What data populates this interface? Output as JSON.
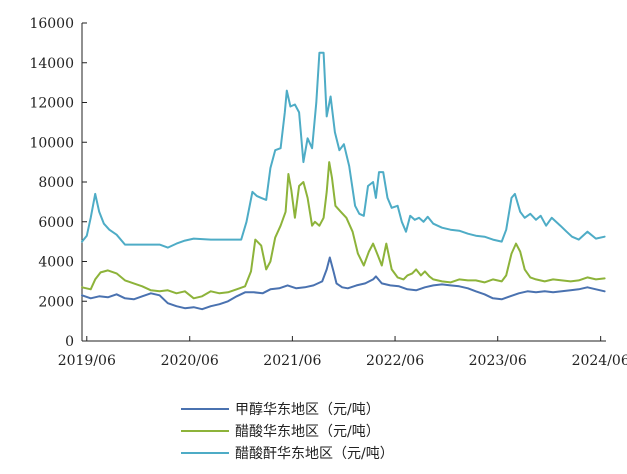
{
  "chart_data": {
    "type": "line",
    "title": "",
    "xlabel": "",
    "ylabel": "",
    "ylim": [
      0,
      16000
    ],
    "yticks": [
      0,
      2000,
      4000,
      6000,
      8000,
      10000,
      12000,
      14000,
      16000
    ],
    "xlim": [
      "2019-05-15",
      "2024-06-20"
    ],
    "xticks": [
      {
        "date": "2019-06-01",
        "label": "2019/06"
      },
      {
        "date": "2020-06-01",
        "label": "2020/06"
      },
      {
        "date": "2021-06-01",
        "label": "2021/06"
      },
      {
        "date": "2022-06-01",
        "label": "2022/06"
      },
      {
        "date": "2023-06-01",
        "label": "2023/06"
      },
      {
        "date": "2024-06-01",
        "label": "2024/06"
      }
    ],
    "grid": false,
    "legend_position": "bottom",
    "series": [
      {
        "name": "甲醇华东地区（元/吨）",
        "color": "#4a72b0",
        "points": [
          [
            "2019-05-15",
            2300
          ],
          [
            "2019-06-15",
            2150
          ],
          [
            "2019-07-15",
            2250
          ],
          [
            "2019-08-15",
            2200
          ],
          [
            "2019-09-15",
            2350
          ],
          [
            "2019-10-15",
            2150
          ],
          [
            "2019-11-15",
            2100
          ],
          [
            "2019-12-15",
            2250
          ],
          [
            "2020-01-15",
            2400
          ],
          [
            "2020-02-15",
            2300
          ],
          [
            "2020-03-15",
            1900
          ],
          [
            "2020-04-15",
            1750
          ],
          [
            "2020-05-15",
            1650
          ],
          [
            "2020-06-15",
            1700
          ],
          [
            "2020-07-15",
            1600
          ],
          [
            "2020-08-15",
            1750
          ],
          [
            "2020-09-15",
            1850
          ],
          [
            "2020-10-15",
            2000
          ],
          [
            "2020-11-15",
            2250
          ],
          [
            "2020-12-15",
            2450
          ],
          [
            "2021-01-15",
            2450
          ],
          [
            "2021-02-15",
            2400
          ],
          [
            "2021-03-15",
            2600
          ],
          [
            "2021-04-15",
            2650
          ],
          [
            "2021-05-15",
            2800
          ],
          [
            "2021-06-15",
            2650
          ],
          [
            "2021-07-15",
            2700
          ],
          [
            "2021-08-15",
            2800
          ],
          [
            "2021-09-15",
            3000
          ],
          [
            "2021-10-01",
            3600
          ],
          [
            "2021-10-12",
            4200
          ],
          [
            "2021-10-25",
            3500
          ],
          [
            "2021-11-05",
            2900
          ],
          [
            "2021-11-25",
            2700
          ],
          [
            "2021-12-15",
            2650
          ],
          [
            "2022-01-15",
            2800
          ],
          [
            "2022-02-15",
            2900
          ],
          [
            "2022-03-15",
            3100
          ],
          [
            "2022-03-25",
            3250
          ],
          [
            "2022-04-15",
            2900
          ],
          [
            "2022-05-15",
            2800
          ],
          [
            "2022-06-15",
            2750
          ],
          [
            "2022-07-15",
            2600
          ],
          [
            "2022-08-15",
            2550
          ],
          [
            "2022-09-15",
            2700
          ],
          [
            "2022-10-15",
            2800
          ],
          [
            "2022-11-15",
            2850
          ],
          [
            "2022-12-15",
            2800
          ],
          [
            "2023-01-15",
            2750
          ],
          [
            "2023-02-15",
            2650
          ],
          [
            "2023-03-15",
            2500
          ],
          [
            "2023-04-15",
            2350
          ],
          [
            "2023-05-15",
            2150
          ],
          [
            "2023-06-15",
            2100
          ],
          [
            "2023-07-15",
            2250
          ],
          [
            "2023-08-15",
            2400
          ],
          [
            "2023-09-15",
            2500
          ],
          [
            "2023-10-15",
            2450
          ],
          [
            "2023-11-15",
            2500
          ],
          [
            "2023-12-15",
            2450
          ],
          [
            "2024-01-15",
            2500
          ],
          [
            "2024-02-15",
            2550
          ],
          [
            "2024-03-15",
            2600
          ],
          [
            "2024-04-15",
            2700
          ],
          [
            "2024-05-15",
            2600
          ],
          [
            "2024-06-15",
            2500
          ]
        ]
      },
      {
        "name": "醋酸华东地区（元/吨）",
        "color": "#8db33a",
        "points": [
          [
            "2019-05-15",
            2700
          ],
          [
            "2019-06-15",
            2600
          ],
          [
            "2019-07-01",
            3100
          ],
          [
            "2019-07-20",
            3450
          ],
          [
            "2019-08-15",
            3550
          ],
          [
            "2019-09-15",
            3400
          ],
          [
            "2019-10-15",
            3050
          ],
          [
            "2019-11-15",
            2900
          ],
          [
            "2019-12-15",
            2750
          ],
          [
            "2020-01-15",
            2550
          ],
          [
            "2020-02-15",
            2500
          ],
          [
            "2020-03-15",
            2550
          ],
          [
            "2020-04-15",
            2400
          ],
          [
            "2020-05-15",
            2500
          ],
          [
            "2020-06-15",
            2150
          ],
          [
            "2020-07-15",
            2250
          ],
          [
            "2020-08-15",
            2500
          ],
          [
            "2020-09-15",
            2400
          ],
          [
            "2020-10-15",
            2450
          ],
          [
            "2020-11-15",
            2600
          ],
          [
            "2020-12-15",
            2750
          ],
          [
            "2021-01-05",
            3500
          ],
          [
            "2021-01-20",
            5100
          ],
          [
            "2021-02-10",
            4800
          ],
          [
            "2021-02-28",
            3600
          ],
          [
            "2021-03-15",
            4000
          ],
          [
            "2021-04-01",
            5200
          ],
          [
            "2021-04-20",
            5800
          ],
          [
            "2021-05-08",
            6500
          ],
          [
            "2021-05-18",
            8400
          ],
          [
            "2021-05-28",
            7600
          ],
          [
            "2021-06-10",
            6200
          ],
          [
            "2021-06-25",
            7800
          ],
          [
            "2021-07-10",
            8000
          ],
          [
            "2021-07-25",
            7200
          ],
          [
            "2021-08-10",
            5800
          ],
          [
            "2021-08-20",
            6000
          ],
          [
            "2021-09-05",
            5800
          ],
          [
            "2021-09-20",
            6200
          ],
          [
            "2021-10-01",
            7500
          ],
          [
            "2021-10-10",
            9000
          ],
          [
            "2021-10-20",
            8200
          ],
          [
            "2021-11-01",
            6800
          ],
          [
            "2021-11-20",
            6500
          ],
          [
            "2021-12-10",
            6200
          ],
          [
            "2022-01-01",
            5500
          ],
          [
            "2022-01-20",
            4400
          ],
          [
            "2022-02-10",
            3800
          ],
          [
            "2022-02-28",
            4500
          ],
          [
            "2022-03-15",
            4900
          ],
          [
            "2022-04-01",
            4300
          ],
          [
            "2022-04-15",
            3800
          ],
          [
            "2022-05-01",
            4900
          ],
          [
            "2022-05-20",
            3600
          ],
          [
            "2022-06-10",
            3200
          ],
          [
            "2022-07-01",
            3100
          ],
          [
            "2022-07-15",
            3300
          ],
          [
            "2022-08-01",
            3400
          ],
          [
            "2022-08-15",
            3600
          ],
          [
            "2022-09-01",
            3300
          ],
          [
            "2022-09-15",
            3500
          ],
          [
            "2022-10-01",
            3250
          ],
          [
            "2022-10-15",
            3100
          ],
          [
            "2022-11-15",
            3000
          ],
          [
            "2022-12-15",
            2950
          ],
          [
            "2023-01-15",
            3100
          ],
          [
            "2023-02-15",
            3050
          ],
          [
            "2023-03-15",
            3050
          ],
          [
            "2023-04-15",
            2950
          ],
          [
            "2023-05-15",
            3100
          ],
          [
            "2023-06-15",
            3000
          ],
          [
            "2023-07-01",
            3300
          ],
          [
            "2023-07-20",
            4400
          ],
          [
            "2023-08-05",
            4900
          ],
          [
            "2023-08-20",
            4500
          ],
          [
            "2023-09-05",
            3600
          ],
          [
            "2023-09-25",
            3200
          ],
          [
            "2023-10-15",
            3100
          ],
          [
            "2023-11-15",
            3000
          ],
          [
            "2023-12-15",
            3100
          ],
          [
            "2024-01-15",
            3050
          ],
          [
            "2024-02-15",
            3000
          ],
          [
            "2024-03-15",
            3050
          ],
          [
            "2024-04-15",
            3200
          ],
          [
            "2024-05-15",
            3100
          ],
          [
            "2024-06-15",
            3150
          ]
        ]
      },
      {
        "name": "醋酸酐华东地区（元/吨）",
        "color": "#4eacc6",
        "points": [
          [
            "2019-05-15",
            5000
          ],
          [
            "2019-06-01",
            5300
          ],
          [
            "2019-06-15",
            6200
          ],
          [
            "2019-07-01",
            7400
          ],
          [
            "2019-07-15",
            6500
          ],
          [
            "2019-08-01",
            5900
          ],
          [
            "2019-08-20",
            5600
          ],
          [
            "2019-09-15",
            5350
          ],
          [
            "2019-10-15",
            4850
          ],
          [
            "2019-12-15",
            4850
          ],
          [
            "2020-02-15",
            4850
          ],
          [
            "2020-03-15",
            4700
          ],
          [
            "2020-04-15",
            4900
          ],
          [
            "2020-05-15",
            5050
          ],
          [
            "2020-06-15",
            5150
          ],
          [
            "2020-08-15",
            5100
          ],
          [
            "2020-10-15",
            5100
          ],
          [
            "2020-12-01",
            5100
          ],
          [
            "2020-12-20",
            6000
          ],
          [
            "2021-01-10",
            7500
          ],
          [
            "2021-01-25",
            7300
          ],
          [
            "2021-02-10",
            7200
          ],
          [
            "2021-02-28",
            7100
          ],
          [
            "2021-03-15",
            8700
          ],
          [
            "2021-04-01",
            9600
          ],
          [
            "2021-04-20",
            9700
          ],
          [
            "2021-05-05",
            11500
          ],
          [
            "2021-05-12",
            12600
          ],
          [
            "2021-05-25",
            11800
          ],
          [
            "2021-06-10",
            11900
          ],
          [
            "2021-06-25",
            11500
          ],
          [
            "2021-07-10",
            9000
          ],
          [
            "2021-07-25",
            10200
          ],
          [
            "2021-08-10",
            9700
          ],
          [
            "2021-08-25",
            12000
          ],
          [
            "2021-09-05",
            14500
          ],
          [
            "2021-09-20",
            14500
          ],
          [
            "2021-10-01",
            11300
          ],
          [
            "2021-10-15",
            12300
          ],
          [
            "2021-10-30",
            10500
          ],
          [
            "2021-11-15",
            9600
          ],
          [
            "2021-12-01",
            9900
          ],
          [
            "2021-12-20",
            8800
          ],
          [
            "2022-01-10",
            6800
          ],
          [
            "2022-01-25",
            6400
          ],
          [
            "2022-02-10",
            6300
          ],
          [
            "2022-02-25",
            7800
          ],
          [
            "2022-03-15",
            8000
          ],
          [
            "2022-03-25",
            7200
          ],
          [
            "2022-04-05",
            8500
          ],
          [
            "2022-04-20",
            8500
          ],
          [
            "2022-05-05",
            7200
          ],
          [
            "2022-05-20",
            6700
          ],
          [
            "2022-06-10",
            6800
          ],
          [
            "2022-06-25",
            6000
          ],
          [
            "2022-07-10",
            5500
          ],
          [
            "2022-07-25",
            6300
          ],
          [
            "2022-08-10",
            6100
          ],
          [
            "2022-08-25",
            6200
          ],
          [
            "2022-09-10",
            6000
          ],
          [
            "2022-09-25",
            6250
          ],
          [
            "2022-10-15",
            5900
          ],
          [
            "2022-11-15",
            5700
          ],
          [
            "2022-12-15",
            5600
          ],
          [
            "2023-01-15",
            5550
          ],
          [
            "2023-02-15",
            5400
          ],
          [
            "2023-03-15",
            5300
          ],
          [
            "2023-04-15",
            5250
          ],
          [
            "2023-05-15",
            5100
          ],
          [
            "2023-06-15",
            5000
          ],
          [
            "2023-07-01",
            5600
          ],
          [
            "2023-07-20",
            7200
          ],
          [
            "2023-08-01",
            7400
          ],
          [
            "2023-08-20",
            6500
          ],
          [
            "2023-09-05",
            6200
          ],
          [
            "2023-09-25",
            6400
          ],
          [
            "2023-10-15",
            6100
          ],
          [
            "2023-11-01",
            6300
          ],
          [
            "2023-11-20",
            5800
          ],
          [
            "2023-12-10",
            6200
          ],
          [
            "2024-01-10",
            5800
          ],
          [
            "2024-02-01",
            5500
          ],
          [
            "2024-02-20",
            5250
          ],
          [
            "2024-03-15",
            5100
          ],
          [
            "2024-04-15",
            5500
          ],
          [
            "2024-05-15",
            5150
          ],
          [
            "2024-06-15",
            5250
          ]
        ]
      }
    ]
  }
}
